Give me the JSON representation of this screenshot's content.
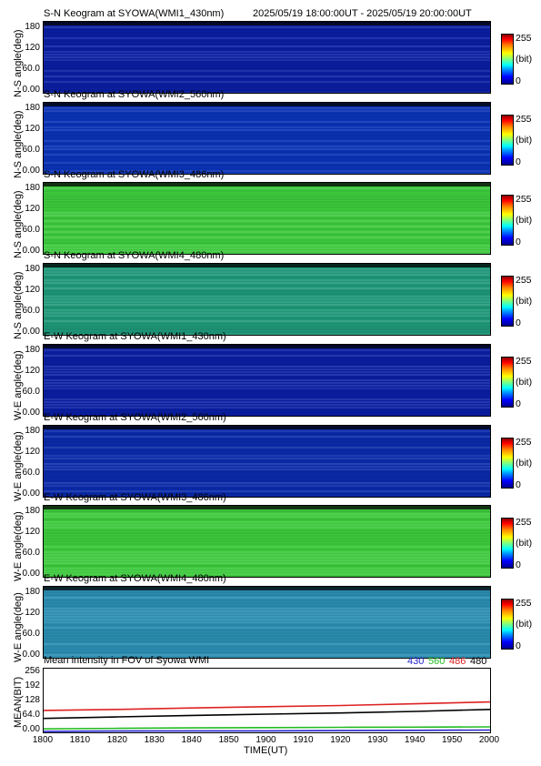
{
  "header": {
    "time_range": "2025/05/19 18:00:00UT - 2025/05/19 20:00:00UT"
  },
  "colorbar": {
    "max_label": "255",
    "unit_label": "(bit)",
    "min_label": "0"
  },
  "panels": [
    {
      "title": "S-N Keogram at SYOWA(WMI1_430nm)",
      "ylabel": "N-S angle(deg)",
      "yticks": [
        "180",
        "120",
        "60.0",
        "0.00"
      ],
      "base_color": "#0a1ea0",
      "level": 0.08
    },
    {
      "title": "S-N Keogram at SYOWA(WMI2_560nm)",
      "ylabel": "N-S angle(deg)",
      "yticks": [
        "180",
        "120",
        "60.0",
        "0.00"
      ],
      "base_color": "#0a32b4",
      "level": 0.12
    },
    {
      "title": "S-N Keogram at SYOWA(WMI3_486nm)",
      "ylabel": "N-S angle(deg)",
      "yticks": [
        "180",
        "120",
        "60.0",
        "0.00"
      ],
      "base_color": "#3cc83c",
      "level": 0.55
    },
    {
      "title": "S-N Keogram at SYOWA(WMI4_480nm)",
      "ylabel": "N-S angle(deg)",
      "yticks": [
        "180",
        "120",
        "60.0",
        "0.00"
      ],
      "base_color": "#1e9678",
      "level": 0.42
    },
    {
      "title": "E-W Keogram at SYOWA(WMI1_430nm)",
      "ylabel": "W-E angle(deg)",
      "yticks": [
        "180",
        "120",
        "60.0",
        "0.00"
      ],
      "base_color": "#0a1ea0",
      "level": 0.08
    },
    {
      "title": "E-W Keogram at SYOWA(WMI2_560nm)",
      "ylabel": "W-E angle(deg)",
      "yticks": [
        "180",
        "120",
        "60.0",
        "0.00"
      ],
      "base_color": "#0a2aa8",
      "level": 0.1
    },
    {
      "title": "E-W Keogram at SYOWA(WMI3_486nm)",
      "ylabel": "W-E angle(deg)",
      "yticks": [
        "180",
        "120",
        "60.0",
        "0.00"
      ],
      "base_color": "#3cc83c",
      "level": 0.55
    },
    {
      "title": "E-W Keogram at SYOWA(WMI4_480nm)",
      "ylabel": "W-E angle(deg)",
      "yticks": [
        "180",
        "120",
        "60.0",
        "0.00"
      ],
      "base_color": "#2a8cb0",
      "level": 0.38
    }
  ],
  "chart_data": {
    "type": "line",
    "title": "Mean intensity in FOV of Syowa WMI",
    "xlabel": "TIME(UT)",
    "ylabel": "MEAN(BIT)",
    "x_ticks": [
      "1800",
      "1810",
      "1820",
      "1830",
      "1840",
      "1850",
      "1900",
      "1910",
      "1920",
      "1930",
      "1940",
      "1950",
      "2000"
    ],
    "y_ticks": [
      "256",
      "192",
      "128",
      "64.0",
      "0.00"
    ],
    "ylim": [
      0,
      256
    ],
    "x": [
      0,
      20,
      40,
      60,
      80,
      100,
      120
    ],
    "series": [
      {
        "name": "430",
        "color": "#2222cc",
        "values": [
          4,
          5,
          6,
          6,
          7,
          8,
          9
        ]
      },
      {
        "name": "560",
        "color": "#22bb22",
        "values": [
          14,
          16,
          18,
          19,
          20,
          21,
          22
        ]
      },
      {
        "name": "486",
        "color": "#dd2222",
        "values": [
          88,
          92,
          98,
          103,
          108,
          115,
          122
        ]
      },
      {
        "name": "480",
        "color": "#000000",
        "values": [
          56,
          62,
          68,
          73,
          78,
          84,
          92
        ]
      }
    ]
  }
}
